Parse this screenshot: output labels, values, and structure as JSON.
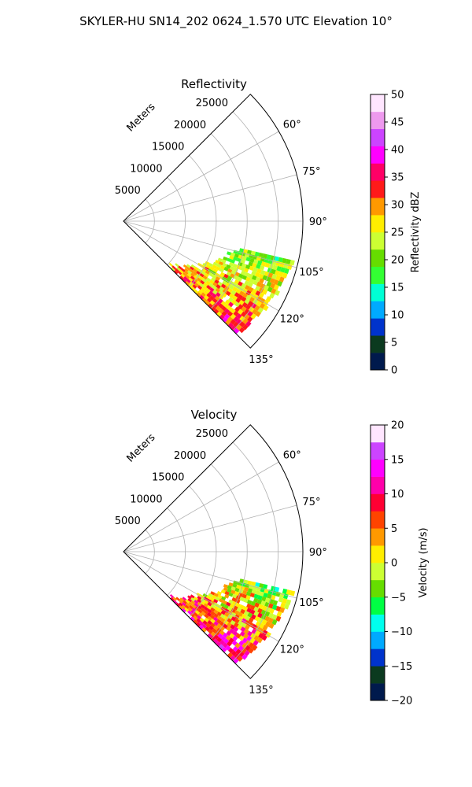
{
  "figure_title": "SKYLER-HU  SN14_202  0624_1.570 UTC Elevation 10°",
  "chart_data": [
    {
      "type": "heatmap",
      "projection": "polar-sector",
      "title": "Reflectivity",
      "range_label": "Meters",
      "range_ticks": [
        5000,
        10000,
        15000,
        20000,
        25000
      ],
      "range_tick_labels": [
        "5000",
        "10000",
        "15000",
        "20000",
        "25000"
      ],
      "rmax": 29000,
      "theta_range": [
        45,
        135
      ],
      "theta_ticks": [
        60,
        75,
        90,
        105,
        120,
        135
      ],
      "theta_tick_labels": [
        "60°",
        "75°",
        "90°",
        "105°",
        "120°",
        "135°"
      ],
      "grid": true,
      "colorbar": {
        "label": "Reflectivity dBZ",
        "min": 0,
        "max": 50,
        "ticks": [
          0,
          5,
          10,
          15,
          20,
          25,
          30,
          35,
          40,
          45,
          50
        ],
        "tick_labels": [
          "0",
          "5",
          "10",
          "15",
          "20",
          "25",
          "30",
          "35",
          "40",
          "45",
          "50"
        ],
        "colors": [
          "#001a4d",
          "#0b3a1f",
          "#0033cc",
          "#00aaff",
          "#00ffd5",
          "#33ff33",
          "#66dd00",
          "#ccff33",
          "#ffee00",
          "#ff9900",
          "#ff1a1a",
          "#ff0066",
          "#ff00ff",
          "#cc44ff",
          "#ee99ee",
          "#ffe6ff"
        ]
      },
      "echo_region": {
        "theta_span": [
          103,
          135
        ],
        "range_span_m": [
          9000,
          28000
        ],
        "value_range": [
          12,
          38
        ]
      }
    },
    {
      "type": "heatmap",
      "projection": "polar-sector",
      "title": "Velocity",
      "range_label": "Meters",
      "range_ticks": [
        5000,
        10000,
        15000,
        20000,
        25000
      ],
      "range_tick_labels": [
        "5000",
        "10000",
        "15000",
        "20000",
        "25000"
      ],
      "rmax": 29000,
      "theta_range": [
        45,
        135
      ],
      "theta_ticks": [
        60,
        75,
        90,
        105,
        120,
        135
      ],
      "theta_tick_labels": [
        "60°",
        "75°",
        "90°",
        "105°",
        "120°",
        "135°"
      ],
      "grid": true,
      "colorbar": {
        "label": "Velocity (m/s)",
        "min": -20,
        "max": 20,
        "ticks": [
          -20,
          -15,
          -10,
          -5,
          0,
          5,
          10,
          15,
          20
        ],
        "tick_labels": [
          "−20",
          "−15",
          "−10",
          "−5",
          "0",
          "5",
          "10",
          "15",
          "20"
        ],
        "colors": [
          "#001a4d",
          "#0b3a1f",
          "#0033cc",
          "#00aaff",
          "#00ffee",
          "#00ff44",
          "#66dd00",
          "#ccff33",
          "#ffee00",
          "#ff9900",
          "#ff4400",
          "#ff0033",
          "#ff00aa",
          "#ff00ff",
          "#cc44ff",
          "#ffe6ff"
        ]
      },
      "echo_region": {
        "theta_span": [
          103,
          135
        ],
        "range_span_m": [
          9000,
          28000
        ],
        "value_range": [
          -12,
          16
        ]
      }
    }
  ]
}
